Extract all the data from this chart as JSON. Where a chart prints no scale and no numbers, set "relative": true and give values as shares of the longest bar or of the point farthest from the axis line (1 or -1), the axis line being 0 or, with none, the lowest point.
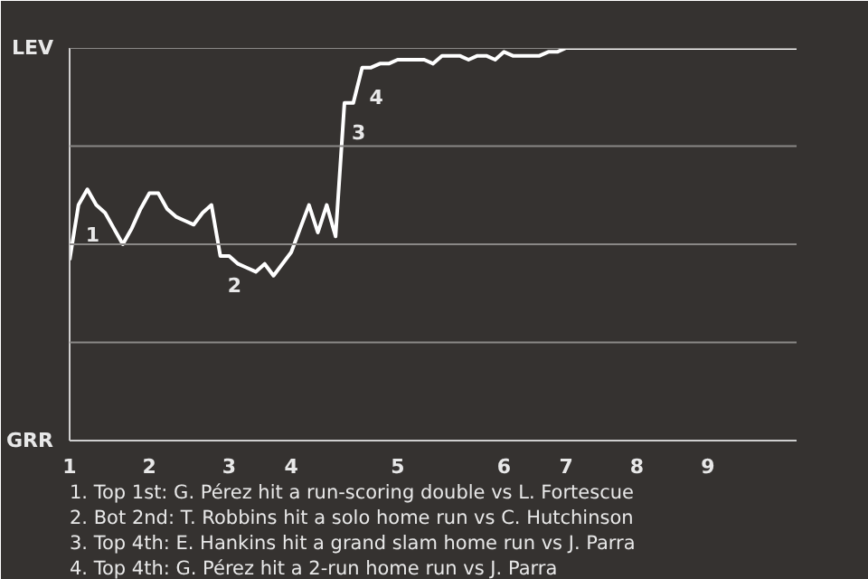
{
  "chart_data": {
    "type": "line",
    "relative": true,
    "categories": [
      "1",
      null,
      null,
      null,
      null,
      null,
      null,
      null,
      null,
      "2",
      null,
      null,
      null,
      null,
      null,
      null,
      null,
      null,
      "3",
      null,
      null,
      null,
      null,
      null,
      null,
      "4",
      null,
      null,
      null,
      null,
      null,
      null,
      null,
      null,
      null,
      null,
      null,
      "5",
      null,
      null,
      null,
      null,
      null,
      null,
      null,
      null,
      null,
      null,
      null,
      "6",
      null,
      null,
      null,
      null,
      null,
      null,
      "7",
      null,
      null,
      null,
      null,
      null,
      null,
      null,
      "8",
      null,
      null,
      null,
      null,
      null,
      null,
      null,
      "9",
      null,
      null,
      null,
      null,
      null,
      null,
      null,
      null,
      null,
      null
    ],
    "grid": "y",
    "series": [
      {
        "color": "#ffffff",
        "values": [
          0.46,
          0.6,
          0.64,
          0.6,
          0.58,
          0.54,
          0.5,
          0.54,
          0.59,
          0.63,
          0.63,
          0.59,
          0.57,
          0.56,
          0.55,
          0.58,
          0.6,
          0.47,
          0.47,
          0.45,
          0.44,
          0.43,
          0.45,
          0.42,
          0.45,
          0.48,
          0.54,
          0.6,
          0.53,
          0.6,
          0.52,
          0.86,
          0.86,
          0.95,
          0.95,
          0.96,
          0.96,
          0.97,
          0.97,
          0.97,
          0.97,
          0.96,
          0.98,
          0.98,
          0.98,
          0.97,
          0.98,
          0.98,
          0.97,
          0.99,
          0.98,
          0.98,
          0.98,
          0.98,
          0.99,
          0.99,
          1,
          1,
          1,
          1,
          1,
          1,
          1,
          1,
          1,
          1,
          1,
          1,
          1,
          1,
          1,
          1,
          1,
          1,
          1,
          1,
          1,
          1,
          1,
          1,
          1,
          1,
          1
        ]
      }
    ],
    "annotations": [
      "LEV",
      "GRR",
      "1",
      "2",
      "3",
      "4",
      "1. Top 1st: G. Pérez hit a run-scoring double vs L. Fortescue",
      "2. Bot 2nd: T. Robbins hit a solo home run vs C. Hutchinson",
      "3. Top 4th: E. Hankins hit a grand slam home run vs J. Parra",
      "4. Top 4th: G. Pérez hit a 2-run home run vs J. Parra"
    ]
  }
}
